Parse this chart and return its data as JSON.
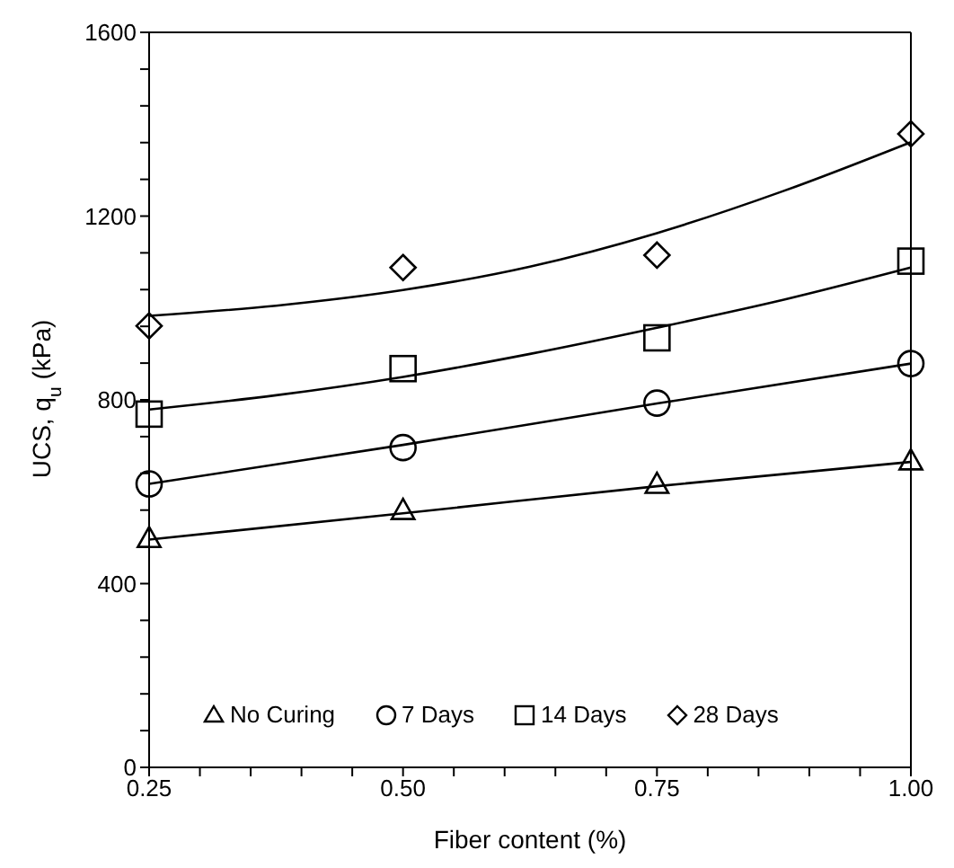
{
  "chart_data": {
    "type": "scatter",
    "xlabel": "Fiber content (%)",
    "ylabel": "UCS, q$_{u}$ (kPa)",
    "xlim": [
      0.25,
      1.0
    ],
    "ylim": [
      0,
      1600
    ],
    "xticks": [
      0.25,
      {
        "value": 0.3,
        "label": null
      },
      {
        "value": 0.35,
        "label": null
      },
      {
        "value": 0.4,
        "label": null
      },
      {
        "value": 0.45,
        "label": null
      },
      {
        "value": 0.5,
        "label": "0.50"
      },
      {
        "value": 0.55,
        "label": null
      },
      {
        "value": 0.6,
        "label": null
      },
      {
        "value": 0.65,
        "label": null
      },
      {
        "value": 0.7,
        "label": null
      },
      0.75,
      {
        "value": 0.8,
        "label": null
      },
      {
        "value": 0.85,
        "label": null
      },
      {
        "value": 0.9,
        "label": null
      },
      {
        "value": 0.95,
        "label": null
      },
      {
        "value": 1.0,
        "label": "1.00"
      }
    ],
    "yticks": [
      0,
      {
        "value": 80,
        "label": null
      },
      {
        "value": 160,
        "label": null
      },
      {
        "value": 240,
        "label": null
      },
      {
        "value": 320,
        "label": null
      },
      400,
      {
        "value": 480,
        "label": null
      },
      {
        "value": 560,
        "label": null
      },
      {
        "value": 640,
        "label": null
      },
      {
        "value": 720,
        "label": null
      },
      800,
      {
        "value": 880,
        "label": null
      },
      {
        "value": 960,
        "label": null
      },
      {
        "value": 1040,
        "label": null
      },
      {
        "value": 1120,
        "label": null
      },
      1200,
      {
        "value": 1280,
        "label": null
      },
      {
        "value": 1360,
        "label": null
      },
      {
        "value": 1440,
        "label": null
      },
      {
        "value": 1520,
        "label": null
      },
      1600
    ],
    "grid": false,
    "legend": "bottom",
    "x": [
      0.25,
      0.5,
      0.75,
      1.0
    ],
    "series": [
      {
        "name": "No Curing",
        "type": "scatter",
        "marker": "triangle",
        "color": "#000000",
        "values": [
          496,
          557,
          614,
          665
        ]
      },
      {
        "name": "7 Days",
        "type": "scatter",
        "marker": "circle",
        "color": "#000000",
        "values": [
          617,
          696,
          793,
          879
        ]
      },
      {
        "name": "14 Days",
        "type": "scatter",
        "marker": "square",
        "color": "#000000",
        "values": [
          769,
          868,
          935,
          1102
        ]
      },
      {
        "name": "28 Days",
        "type": "scatter",
        "marker": "diamond",
        "color": "#000000",
        "values": [
          961,
          1088,
          1115,
          1379
        ]
      },
      {
        "type": "line",
        "marker": "none",
        "color": "#000000",
        "x": [
          0.25,
          0.5,
          0.75,
          1.0
        ],
        "values": [
          496,
          553,
          612,
          665
        ]
      },
      {
        "type": "line",
        "marker": "none",
        "color": "#000000",
        "x": [
          0.25,
          0.5,
          0.75,
          1.0
        ],
        "values": [
          617,
          702,
          792,
          879
        ]
      },
      {
        "type": "line",
        "marker": "none",
        "color": "#000000",
        "x": [
          0.25,
          0.375,
          0.5,
          0.625,
          0.75,
          0.875,
          1.0
        ],
        "values": [
          779,
          810,
          850,
          900,
          957,
          1018,
          1088
        ]
      },
      {
        "type": "line",
        "marker": "none",
        "color": "#000000",
        "x": [
          0.25,
          0.375,
          0.5,
          0.625,
          0.75,
          0.875,
          1.0
        ],
        "values": [
          983,
          1005,
          1039,
          1090,
          1163,
          1255,
          1361
        ]
      }
    ]
  }
}
